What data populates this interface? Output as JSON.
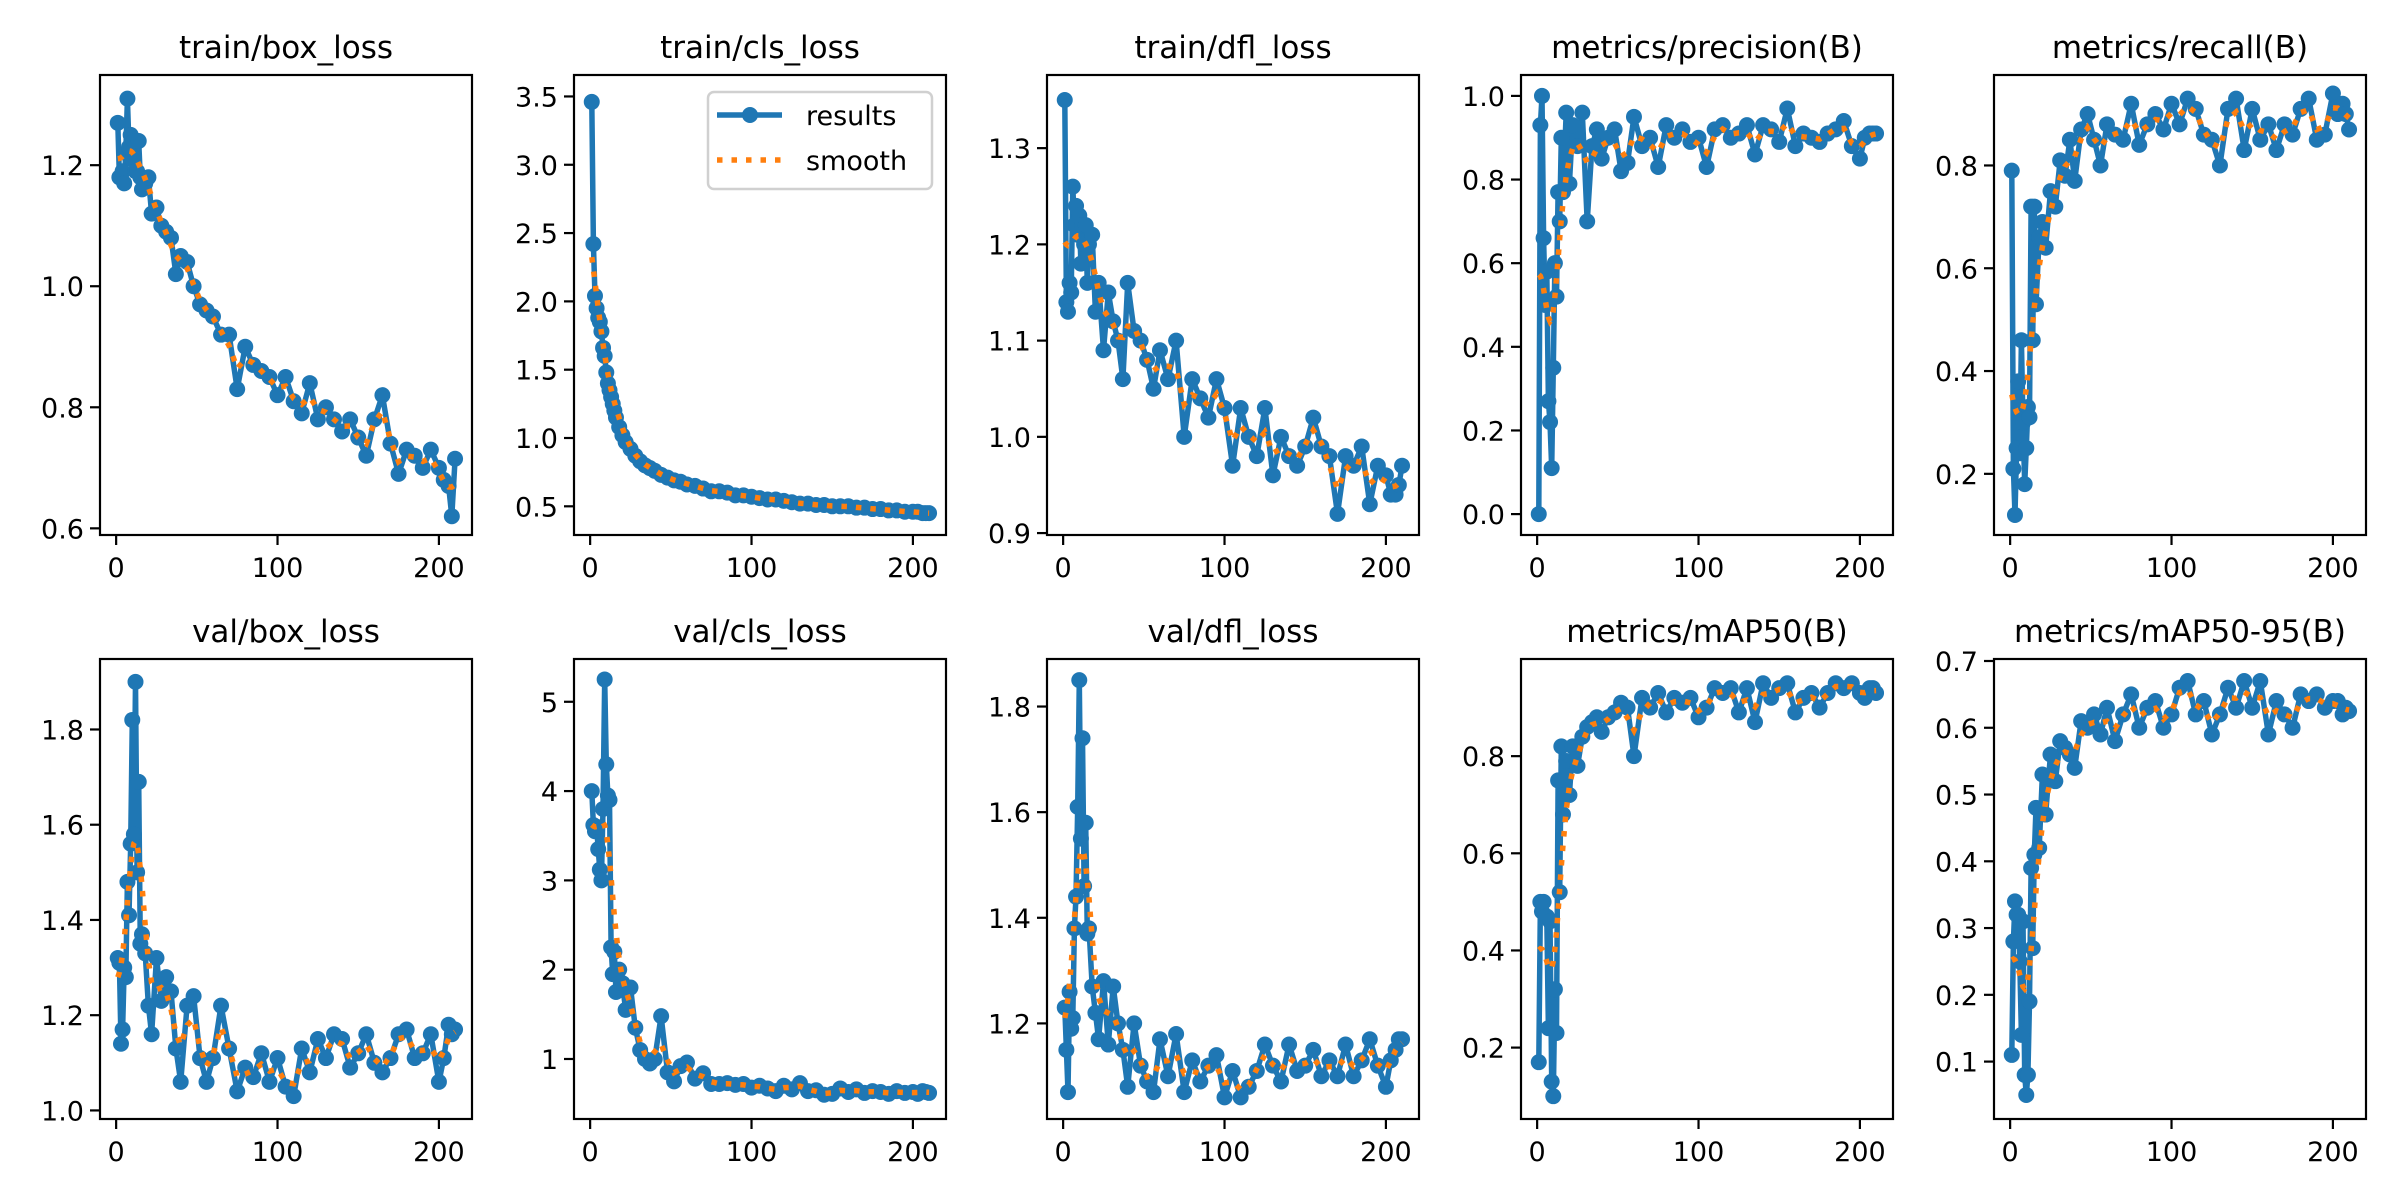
{
  "chart_data": [
    {
      "type": "line",
      "title": "train/box_loss",
      "xlim": [
        -10,
        220.5
      ],
      "ylim": [
        0.589,
        1.349
      ],
      "xticks": [
        "0",
        "100",
        "200"
      ],
      "yticks": [
        "0.6",
        "0.8",
        "1.0",
        "1.2"
      ],
      "values": [
        1.27,
        1.18,
        1.18,
        1.19,
        1.17,
        1.22,
        1.31,
        1.23,
        1.25,
        1.21,
        1.24,
        1.19,
        1.19,
        1.24,
        1.18,
        1.16,
        1.17,
        1.18,
        1.12,
        1.13,
        1.1,
        1.09,
        1.08,
        1.02,
        1.05,
        1.04,
        1.0,
        0.97,
        0.96,
        0.95,
        0.92,
        0.92,
        0.83,
        0.9,
        0.87,
        0.86,
        0.85,
        0.82,
        0.85,
        0.81,
        0.79,
        0.84,
        0.78,
        0.8,
        0.78,
        0.76,
        0.78,
        0.75,
        0.72,
        0.78,
        0.82,
        0.74,
        0.69,
        0.73,
        0.72,
        0.7,
        0.73,
        0.7,
        0.68,
        0.67,
        0.62,
        0.715
      ]
    },
    {
      "type": "line",
      "title": "train/cls_loss",
      "xlim": [
        -10,
        220.5
      ],
      "ylim": [
        0.29,
        3.657
      ],
      "xticks": [
        "0",
        "100",
        "200"
      ],
      "yticks": [
        "0.5",
        "1.0",
        "1.5",
        "2.0",
        "2.5",
        "3.0",
        "3.5"
      ],
      "legend": "top-right",
      "values": [
        3.46,
        2.42,
        2.04,
        1.95,
        1.88,
        1.85,
        1.78,
        1.66,
        1.6,
        1.48,
        1.4,
        1.35,
        1.3,
        1.25,
        1.2,
        1.15,
        1.08,
        1.02,
        0.97,
        0.92,
        0.87,
        0.83,
        0.8,
        0.78,
        0.76,
        0.73,
        0.71,
        0.69,
        0.68,
        0.66,
        0.65,
        0.63,
        0.61,
        0.61,
        0.6,
        0.58,
        0.58,
        0.57,
        0.56,
        0.55,
        0.55,
        0.54,
        0.53,
        0.52,
        0.52,
        0.51,
        0.51,
        0.5,
        0.5,
        0.5,
        0.49,
        0.49,
        0.48,
        0.48,
        0.47,
        0.47,
        0.46,
        0.46,
        0.46,
        0.45,
        0.45,
        0.45
      ]
    },
    {
      "type": "line",
      "title": "train/dfl_loss",
      "xlim": [
        -10,
        220.5
      ],
      "ylim": [
        0.898,
        1.376
      ],
      "xticks": [
        "0",
        "100",
        "200"
      ],
      "yticks": [
        "0.9",
        "1.0",
        "1.1",
        "1.2",
        "1.3"
      ],
      "values": [
        1.35,
        1.14,
        1.13,
        1.16,
        1.15,
        1.26,
        1.22,
        1.24,
        1.21,
        1.23,
        1.18,
        1.22,
        1.2,
        1.22,
        1.16,
        1.2,
        1.21,
        1.13,
        1.16,
        1.09,
        1.15,
        1.12,
        1.1,
        1.06,
        1.16,
        1.11,
        1.1,
        1.08,
        1.05,
        1.09,
        1.06,
        1.1,
        1.0,
        1.06,
        1.04,
        1.02,
        1.06,
        1.03,
        0.97,
        1.03,
        1.0,
        0.98,
        1.03,
        0.96,
        1.0,
        0.98,
        0.97,
        0.99,
        1.02,
        0.99,
        0.98,
        0.92,
        0.98,
        0.97,
        0.99,
        0.93,
        0.97,
        0.96,
        0.94,
        0.94,
        0.95,
        0.97
      ]
    },
    {
      "type": "line",
      "title": "metrics/precision(B)",
      "xlim": [
        -10,
        220.5
      ],
      "ylim": [
        -0.05,
        1.05
      ],
      "xticks": [
        "0",
        "100",
        "200"
      ],
      "yticks": [
        "0.0",
        "0.2",
        "0.4",
        "0.6",
        "0.8",
        "1.0"
      ],
      "values": [
        0.0,
        0.93,
        1.0,
        0.66,
        0.5,
        0.58,
        0.27,
        0.22,
        0.11,
        0.35,
        0.6,
        0.52,
        0.77,
        0.7,
        0.9,
        0.77,
        0.96,
        0.79,
        0.93,
        0.88,
        0.96,
        0.7,
        0.88,
        0.92,
        0.85,
        0.9,
        0.92,
        0.82,
        0.84,
        0.95,
        0.88,
        0.9,
        0.83,
        0.93,
        0.9,
        0.92,
        0.89,
        0.9,
        0.83,
        0.92,
        0.93,
        0.9,
        0.91,
        0.93,
        0.86,
        0.93,
        0.92,
        0.89,
        0.97,
        0.88,
        0.91,
        0.9,
        0.89,
        0.91,
        0.92,
        0.94,
        0.88,
        0.85,
        0.9,
        0.91,
        0.91,
        0.91
      ]
    },
    {
      "type": "line",
      "title": "metrics/recall(B)",
      "xlim": [
        -10,
        220.5
      ],
      "ylim": [
        0.081,
        0.976
      ],
      "xticks": [
        "0",
        "100",
        "200"
      ],
      "yticks": [
        "0.2",
        "0.4",
        "0.6",
        "0.8"
      ],
      "values": [
        0.79,
        0.21,
        0.12,
        0.25,
        0.38,
        0.24,
        0.46,
        0.3,
        0.18,
        0.25,
        0.33,
        0.31,
        0.72,
        0.46,
        0.72,
        0.53,
        0.66,
        0.69,
        0.64,
        0.75,
        0.72,
        0.81,
        0.78,
        0.85,
        0.77,
        0.87,
        0.9,
        0.85,
        0.8,
        0.88,
        0.86,
        0.85,
        0.92,
        0.84,
        0.88,
        0.9,
        0.87,
        0.92,
        0.88,
        0.93,
        0.91,
        0.86,
        0.85,
        0.8,
        0.91,
        0.93,
        0.83,
        0.91,
        0.85,
        0.88,
        0.83,
        0.88,
        0.86,
        0.91,
        0.93,
        0.85,
        0.86,
        0.94,
        0.9,
        0.92,
        0.9,
        0.87
      ]
    },
    {
      "type": "line",
      "title": "val/box_loss",
      "xlim": [
        -10,
        220.5
      ],
      "ylim": [
        0.982,
        1.948
      ],
      "xticks": [
        "0",
        "100",
        "200"
      ],
      "yticks": [
        "1.0",
        "1.2",
        "1.4",
        "1.6",
        "1.8"
      ],
      "values": [
        1.32,
        1.31,
        1.14,
        1.17,
        1.3,
        1.28,
        1.48,
        1.41,
        1.56,
        1.82,
        1.58,
        1.9,
        1.5,
        1.69,
        1.35,
        1.37,
        1.33,
        1.22,
        1.16,
        1.32,
        1.23,
        1.28,
        1.25,
        1.13,
        1.06,
        1.22,
        1.24,
        1.11,
        1.06,
        1.11,
        1.22,
        1.13,
        1.04,
        1.09,
        1.07,
        1.12,
        1.06,
        1.11,
        1.05,
        1.03,
        1.13,
        1.08,
        1.15,
        1.11,
        1.16,
        1.15,
        1.09,
        1.12,
        1.16,
        1.1,
        1.08,
        1.11,
        1.16,
        1.17,
        1.11,
        1.12,
        1.16,
        1.06,
        1.11,
        1.18,
        1.16,
        1.17
      ]
    },
    {
      "type": "line",
      "title": "val/cls_loss",
      "xlim": [
        -10,
        220.5
      ],
      "ylim": [
        0.328,
        5.479
      ],
      "xticks": [
        "0",
        "100",
        "200"
      ],
      "yticks": [
        "1",
        "2",
        "3",
        "4",
        "5"
      ],
      "values": [
        4.0,
        3.62,
        3.55,
        3.6,
        3.35,
        3.12,
        3.0,
        3.8,
        5.25,
        4.3,
        3.95,
        3.9,
        2.25,
        1.95,
        2.2,
        1.75,
        2.0,
        1.85,
        1.55,
        1.8,
        1.35,
        1.1,
        1.0,
        0.95,
        1.0,
        1.48,
        0.85,
        0.75,
        0.92,
        0.96,
        0.78,
        0.84,
        0.72,
        0.72,
        0.73,
        0.71,
        0.72,
        0.68,
        0.7,
        0.67,
        0.64,
        0.7,
        0.66,
        0.73,
        0.64,
        0.65,
        0.6,
        0.61,
        0.67,
        0.63,
        0.66,
        0.62,
        0.64,
        0.63,
        0.61,
        0.64,
        0.62,
        0.63,
        0.61,
        0.64,
        0.63,
        0.62
      ]
    },
    {
      "type": "line",
      "title": "val/dfl_loss",
      "xlim": [
        -10,
        220.5
      ],
      "ylim": [
        1.019,
        1.89
      ],
      "xticks": [
        "0",
        "100",
        "200"
      ],
      "yticks": [
        "1.2",
        "1.4",
        "1.6",
        "1.8"
      ],
      "values": [
        1.23,
        1.15,
        1.07,
        1.26,
        1.19,
        1.21,
        1.38,
        1.44,
        1.61,
        1.85,
        1.55,
        1.74,
        1.46,
        1.58,
        1.37,
        1.38,
        1.27,
        1.22,
        1.17,
        1.28,
        1.16,
        1.27,
        1.2,
        1.15,
        1.08,
        1.2,
        1.12,
        1.09,
        1.07,
        1.17,
        1.1,
        1.18,
        1.07,
        1.13,
        1.09,
        1.12,
        1.14,
        1.06,
        1.11,
        1.06,
        1.08,
        1.11,
        1.16,
        1.12,
        1.09,
        1.16,
        1.11,
        1.12,
        1.15,
        1.1,
        1.13,
        1.1,
        1.16,
        1.1,
        1.13,
        1.17,
        1.12,
        1.08,
        1.13,
        1.15,
        1.17,
        1.17
      ]
    },
    {
      "type": "line",
      "title": "metrics/mAP50(B)",
      "xlim": [
        -10,
        220.5
      ],
      "ylim": [
        0.053,
        1.0
      ],
      "xticks": [
        "0",
        "100",
        "200"
      ],
      "yticks": [
        "0.2",
        "0.4",
        "0.6",
        "0.8"
      ],
      "values": [
        0.17,
        0.5,
        0.48,
        0.5,
        0.47,
        0.47,
        0.24,
        0.46,
        0.13,
        0.1,
        0.32,
        0.23,
        0.75,
        0.52,
        0.82,
        0.68,
        0.79,
        0.72,
        0.82,
        0.78,
        0.84,
        0.86,
        0.87,
        0.88,
        0.85,
        0.88,
        0.89,
        0.91,
        0.9,
        0.8,
        0.92,
        0.9,
        0.93,
        0.89,
        0.92,
        0.91,
        0.92,
        0.88,
        0.9,
        0.94,
        0.93,
        0.94,
        0.89,
        0.94,
        0.87,
        0.95,
        0.92,
        0.94,
        0.95,
        0.89,
        0.92,
        0.93,
        0.9,
        0.93,
        0.95,
        0.94,
        0.95,
        0.93,
        0.92,
        0.94,
        0.94,
        0.93
      ]
    },
    {
      "type": "line",
      "title": "metrics/mAP50-95(B)",
      "xlim": [
        -10,
        220.5
      ],
      "ylim": [
        0.014,
        0.703
      ],
      "xticks": [
        "0",
        "100",
        "200"
      ],
      "yticks": [
        "0.1",
        "0.2",
        "0.3",
        "0.4",
        "0.5",
        "0.6",
        "0.7"
      ],
      "values": [
        0.11,
        0.28,
        0.34,
        0.32,
        0.32,
        0.25,
        0.14,
        0.31,
        0.08,
        0.05,
        0.08,
        0.19,
        0.39,
        0.27,
        0.41,
        0.48,
        0.42,
        0.53,
        0.47,
        0.56,
        0.52,
        0.58,
        0.57,
        0.56,
        0.54,
        0.61,
        0.6,
        0.62,
        0.59,
        0.63,
        0.58,
        0.62,
        0.65,
        0.6,
        0.63,
        0.64,
        0.6,
        0.62,
        0.66,
        0.67,
        0.62,
        0.64,
        0.59,
        0.62,
        0.66,
        0.63,
        0.67,
        0.63,
        0.67,
        0.59,
        0.64,
        0.62,
        0.6,
        0.65,
        0.64,
        0.65,
        0.63,
        0.64,
        0.64,
        0.62,
        0.63,
        0.625
      ]
    }
  ],
  "epochs": [
    1,
    2,
    3,
    4,
    5,
    6,
    7,
    8,
    9,
    10,
    11,
    12,
    13,
    14,
    15,
    16,
    18,
    20,
    22,
    25,
    28,
    31,
    34,
    37,
    40,
    44,
    48,
    52,
    56,
    60,
    65,
    70,
    75,
    80,
    85,
    90,
    95,
    100,
    105,
    110,
    115,
    120,
    125,
    130,
    135,
    140,
    145,
    150,
    155,
    160,
    165,
    170,
    175,
    180,
    185,
    190,
    195,
    200,
    203,
    206,
    208,
    210
  ],
  "legend": {
    "results_label": "results",
    "smooth_label": "smooth"
  },
  "colors": {
    "results": "#1f77b4",
    "smooth": "#ff7f0e"
  }
}
